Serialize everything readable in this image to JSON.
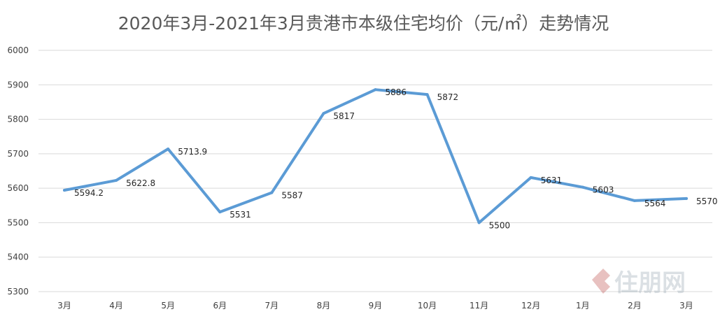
{
  "chart_data": {
    "type": "line",
    "title": "2020年3月-2021年3月贵港市本级住宅均价（元/㎡）走势情况",
    "xlabel": "",
    "ylabel": "",
    "categories": [
      "3月",
      "4月",
      "5月",
      "6月",
      "7月",
      "8月",
      "9月",
      "10月",
      "11月",
      "12月",
      "1月",
      "2月",
      "3月"
    ],
    "series": [
      {
        "values": [
          5594.2,
          5622.8,
          5713.9,
          5531,
          5587,
          5817,
          5886,
          5872,
          5500,
          5631,
          5603,
          5564,
          5570
        ],
        "labels": [
          "5594.2",
          "5622.8",
          "5713.9",
          "5531",
          "5587",
          "5817",
          "5886",
          "5872",
          "5500",
          "5631",
          "5603",
          "5564",
          "5570"
        ],
        "color": "#5b9bd5"
      }
    ],
    "ylim": [
      5300,
      6000
    ],
    "yticks": [
      "5300",
      "5400",
      "5500",
      "5600",
      "5700",
      "5800",
      "5900",
      "6000"
    ],
    "grid": true,
    "legend": "none",
    "gridColor": "#d9d9d9"
  },
  "watermark": "住朋网"
}
